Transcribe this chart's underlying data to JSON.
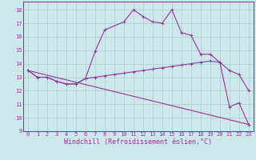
{
  "xlabel": "Windchill (Refroidissement éolien,°C)",
  "bg_color": "#cce8ec",
  "line_color": "#993399",
  "grid_color": "#aacccc",
  "xlim": [
    -0.5,
    23.5
  ],
  "ylim": [
    9,
    18.6
  ],
  "yticks": [
    9,
    10,
    11,
    12,
    13,
    14,
    15,
    16,
    17,
    18
  ],
  "xticks": [
    0,
    1,
    2,
    3,
    4,
    5,
    6,
    7,
    8,
    9,
    10,
    11,
    12,
    13,
    14,
    15,
    16,
    17,
    18,
    19,
    20,
    21,
    22,
    23
  ],
  "line1_x": [
    0,
    1,
    2,
    3,
    4,
    5,
    6,
    7,
    8,
    10,
    11,
    12,
    13,
    14,
    15,
    16,
    17,
    18,
    19,
    20,
    21,
    22,
    23
  ],
  "line1_y": [
    13.5,
    13.0,
    13.0,
    12.7,
    12.5,
    12.5,
    12.9,
    14.9,
    16.5,
    17.1,
    18.0,
    17.5,
    17.1,
    17.0,
    18.0,
    16.3,
    16.1,
    14.7,
    14.7,
    14.1,
    10.8,
    11.1,
    9.5
  ],
  "line2_x": [
    0,
    1,
    2,
    3,
    4,
    5,
    6,
    7,
    8,
    9,
    10,
    11,
    12,
    13,
    14,
    15,
    16,
    17,
    18,
    19,
    20,
    21,
    22,
    23
  ],
  "line2_y": [
    13.5,
    13.0,
    13.0,
    12.7,
    12.5,
    12.5,
    12.9,
    13.0,
    13.1,
    13.2,
    13.3,
    13.4,
    13.5,
    13.6,
    13.7,
    13.8,
    13.9,
    14.0,
    14.1,
    14.2,
    14.1,
    13.5,
    13.2,
    12.0
  ],
  "line3_x": [
    0,
    23
  ],
  "line3_y": [
    13.5,
    9.5
  ],
  "tick_fontsize": 5.0,
  "xlabel_fontsize": 6.0
}
